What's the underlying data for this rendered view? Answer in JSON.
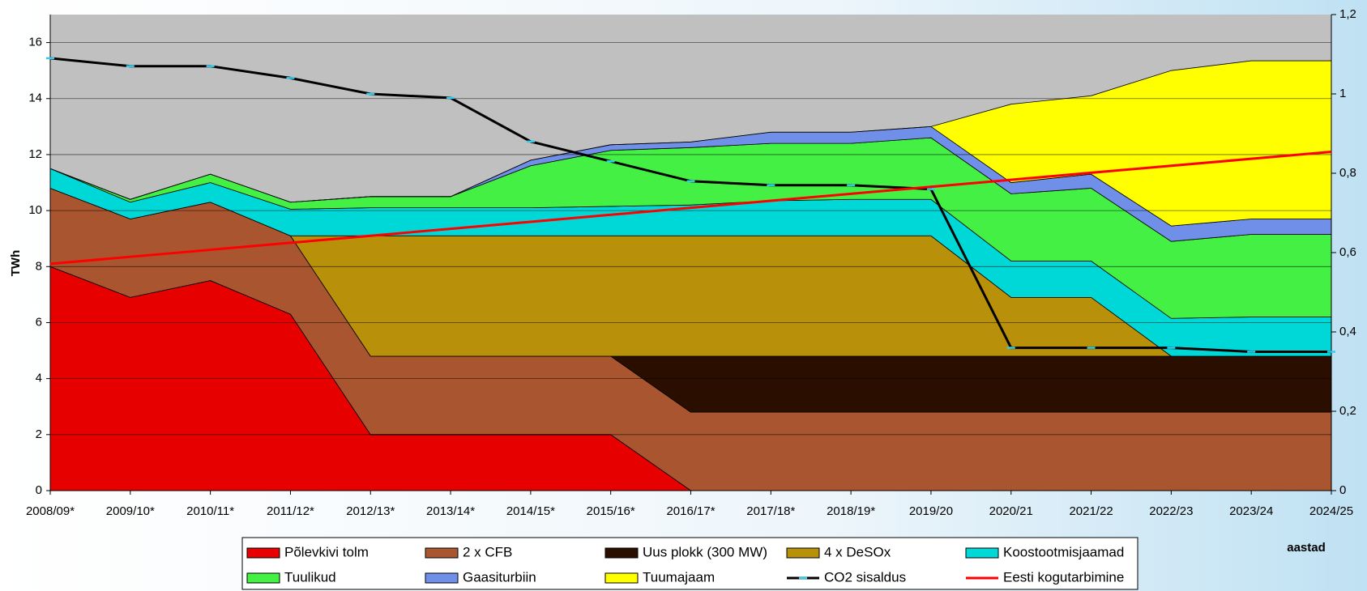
{
  "chart_data": {
    "type": "area",
    "y_label": "TWh",
    "x_label": "aastad",
    "categories": [
      "2008/09*",
      "2009/10*",
      "2010/11*",
      "2011/12*",
      "2012/13*",
      "2013/14*",
      "2014/15*",
      "2015/16*",
      "2016/17*",
      "2017/18*",
      "2018/19*",
      "2019/20",
      "2020/21",
      "2021/22",
      "2022/23",
      "2023/24",
      "2024/25"
    ],
    "ylim": [
      0,
      17
    ],
    "yticks": [
      0,
      2,
      4,
      6,
      8,
      10,
      12,
      14,
      16
    ],
    "y2lim": [
      0,
      1.2
    ],
    "y2ticks": [
      0,
      {
        "value": 0.2,
        "label": "0,2"
      },
      {
        "value": 0.4,
        "label": "0,4"
      },
      {
        "value": 0.6,
        "label": "0,6"
      },
      {
        "value": 0.8,
        "label": "0,8"
      },
      1,
      {
        "value": 1.2,
        "label": "1,2"
      }
    ],
    "grid": true,
    "plot_background": "#c0c0c0",
    "series": [
      {
        "name": "Põlevkivi tolm",
        "color": "#e60000",
        "values": [
          8.0,
          6.9,
          7.5,
          6.3,
          2.0,
          2.0,
          2.0,
          2.0,
          0,
          0,
          0,
          0,
          0,
          0,
          0,
          0,
          0
        ]
      },
      {
        "name": "2 x CFB",
        "color": "#a85530",
        "values": [
          2.8,
          2.8,
          2.8,
          2.8,
          2.8,
          2.8,
          2.8,
          2.8,
          2.8,
          2.8,
          2.8,
          2.8,
          2.8,
          2.8,
          2.8,
          2.8,
          2.8
        ]
      },
      {
        "name": "Uus plokk (300 MW)",
        "color": "#2a0e00",
        "values": [
          0,
          0,
          0,
          0,
          0,
          0,
          0,
          0,
          2.0,
          2.0,
          2.0,
          2.0,
          2.0,
          2.0,
          2.0,
          2.0,
          2.0
        ]
      },
      {
        "name": "4 x DeSOx",
        "color": "#b8900a",
        "values": [
          0,
          0,
          0,
          0,
          4.3,
          4.3,
          4.3,
          4.3,
          4.3,
          4.3,
          4.3,
          4.3,
          2.1,
          2.1,
          0,
          0,
          0
        ]
      },
      {
        "name": "Koostootmisjaamad",
        "color": "#00d8d8",
        "values": [
          0.7,
          0.6,
          0.7,
          0.95,
          1.0,
          1.0,
          1.0,
          1.05,
          1.1,
          1.25,
          1.3,
          1.3,
          1.3,
          1.3,
          1.35,
          1.4,
          1.4
        ]
      },
      {
        "name": "Tuulikud",
        "color": "#44f044",
        "values": [
          0,
          0.1,
          0.3,
          0.25,
          0.4,
          0.4,
          1.5,
          2.0,
          2.05,
          2.05,
          2.0,
          2.2,
          2.4,
          2.6,
          2.75,
          2.95,
          2.95
        ]
      },
      {
        "name": "Gaasiturbiin",
        "color": "#6f8fe8",
        "values": [
          0,
          0,
          0,
          0,
          0,
          0,
          0.2,
          0.2,
          0.2,
          0.4,
          0.4,
          0.4,
          0.4,
          0.5,
          0.55,
          0.55,
          0.55
        ]
      },
      {
        "name": "Tuumajaam",
        "color": "#ffff00",
        "values": [
          0,
          0,
          0,
          0,
          0,
          0,
          0,
          0,
          0,
          0,
          0,
          0,
          2.8,
          2.8,
          5.55,
          5.65,
          5.65
        ]
      },
      {
        "name": "CO2 sisaldus",
        "color": "#000000",
        "kind": "line",
        "axis": "y2",
        "values": [
          1.09,
          1.07,
          1.07,
          1.04,
          1.0,
          0.99,
          0.88,
          0.83,
          0.78,
          0.77,
          0.77,
          0.76,
          0.36,
          0.36,
          0.36,
          0.35,
          0.35
        ]
      },
      {
        "name": "Eesti kogutarbimine",
        "color": "#ff0000",
        "kind": "line",
        "values": [
          8.1,
          8.35,
          8.6,
          8.85,
          9.1,
          9.35,
          9.6,
          9.85,
          10.1,
          10.35,
          10.6,
          10.85,
          11.1,
          11.35,
          11.6,
          11.85,
          12.1
        ]
      }
    ]
  }
}
